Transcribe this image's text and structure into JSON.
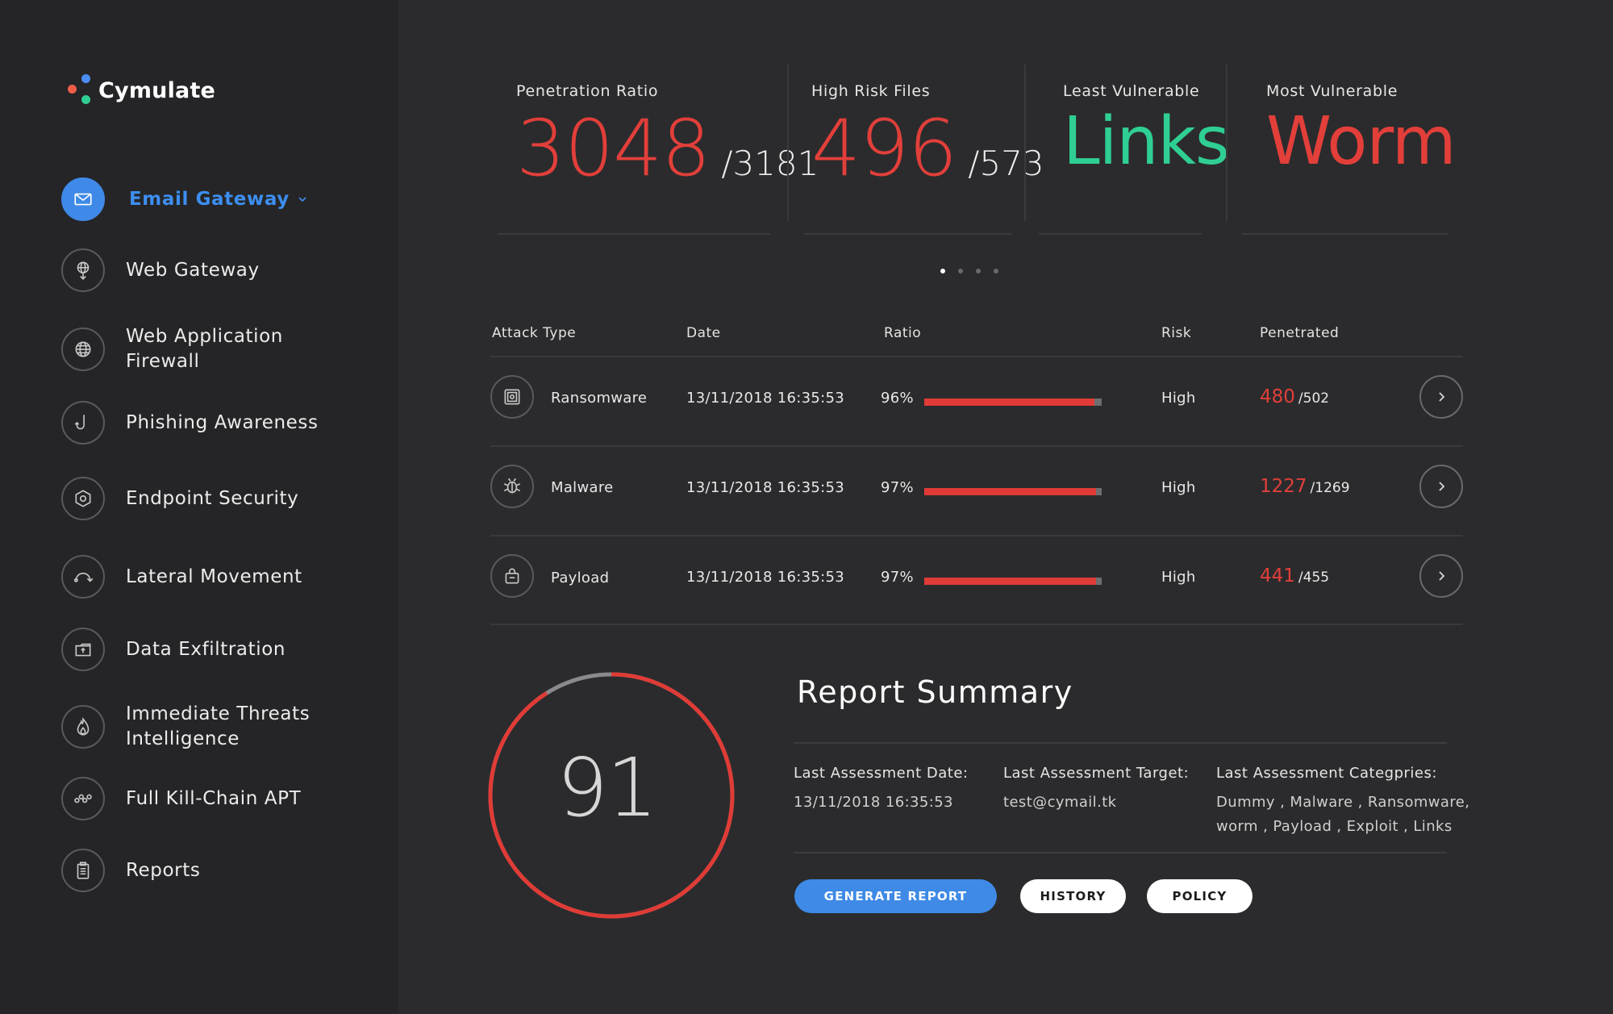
{
  "logo": {
    "name": "Cymulate"
  },
  "sidebar": {
    "items": [
      {
        "label": "Email Gateway",
        "icon": "mail-icon",
        "active": true
      },
      {
        "label": "Web Gateway",
        "icon": "web-gateway-icon"
      },
      {
        "label": "Web Application Firewall",
        "icon": "globe-icon"
      },
      {
        "label": "Phishing Awareness",
        "icon": "hook-icon"
      },
      {
        "label": "Endpoint Security",
        "icon": "endpoint-hexagon-icon"
      },
      {
        "label": "Lateral Movement",
        "icon": "lateral-arc-icon"
      },
      {
        "label": "Data Exfiltration",
        "icon": "exfiltration-folder-icon"
      },
      {
        "label": "Immediate Threats Intelligence",
        "icon": "flame-icon"
      },
      {
        "label": "Full Kill-Chain APT",
        "icon": "chain-icon"
      },
      {
        "label": "Reports",
        "icon": "clipboard-icon"
      }
    ]
  },
  "stats": {
    "penetration": {
      "label": "Penetration Ratio",
      "value": "3048",
      "total": "/3181"
    },
    "high_risk": {
      "label": "High Risk Files",
      "value": "496",
      "total": "/573"
    },
    "least": {
      "label": "Least Vulnerable",
      "value": "Links"
    },
    "most": {
      "label": "Most Vulnerable",
      "value": "Worm"
    }
  },
  "pager": {
    "count": 4,
    "active": 0
  },
  "table": {
    "headers": {
      "attack_type": "Attack Type",
      "date": "Date",
      "ratio": "Ratio",
      "risk": "Risk",
      "penetrated": "Penetrated"
    },
    "rows": [
      {
        "name": "Ransomware",
        "icon": "safe-icon",
        "date": "13/11/2018 16:35:53",
        "ratio": "96%",
        "ratio_value": 0.96,
        "risk": "High",
        "penetrated": "480",
        "total": "/502"
      },
      {
        "name": "Malware",
        "icon": "bug-icon",
        "date": "13/11/2018 16:35:53",
        "ratio": "97%",
        "ratio_value": 0.97,
        "risk": "High",
        "penetrated": "1227",
        "total": "/1269"
      },
      {
        "name": "Payload",
        "icon": "bag-icon",
        "date": "13/11/2018 16:35:53",
        "ratio": "97%",
        "ratio_value": 0.97,
        "risk": "High",
        "penetrated": "441",
        "total": "/455"
      }
    ]
  },
  "summary": {
    "score": "91",
    "score_value": 91,
    "title": "Report Summary",
    "date_label": "Last Assessment Date:",
    "date_value": "13/11/2018 16:35:53",
    "target_label": "Last Assessment Target:",
    "target_value": "test@cymail.tk",
    "categories_label": "Last Assessment Categpries:",
    "categories_line1": "Dummy , Malware , Ransomware,",
    "categories_line2": "worm , Payload , Exploit , Links",
    "buttons": {
      "generate": "GENERATE REPORT",
      "history": "HISTORY",
      "policy": "POLICY"
    }
  },
  "colors": {
    "accent": "#3e8ae6",
    "danger": "#e23f3a",
    "success": "#2fcf94",
    "background": "#2b2b2d",
    "sidebar": "#252527"
  }
}
